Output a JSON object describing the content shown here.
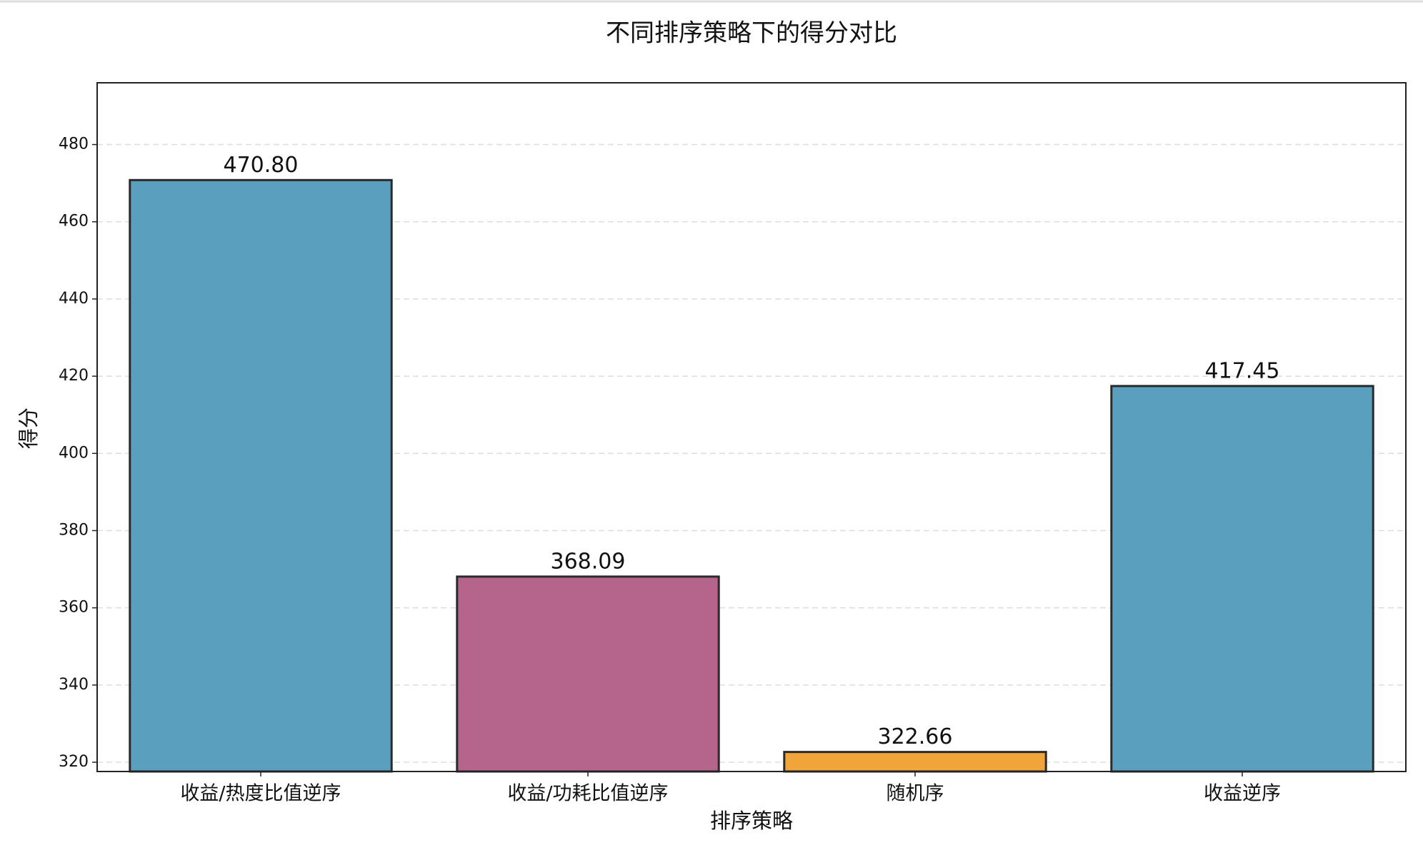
{
  "chart_data": {
    "type": "bar",
    "title": "不同排序策略下的得分对比",
    "x_label": "排序策略",
    "y_label": "得分",
    "categories": [
      "收益/热度比值逆序",
      "收益/功耗比值逆序",
      "随机序",
      "收益逆序"
    ],
    "values": [
      470.8,
      368.09,
      322.66,
      417.45
    ],
    "value_labels": [
      "470.80",
      "368.09",
      "322.66",
      "417.45"
    ],
    "colors": [
      "#5a9fbd",
      "#b5648c",
      "#f0a43a",
      "#5a9fbd"
    ],
    "ylim": [
      317.6,
      496
    ],
    "yticks": [
      320,
      340,
      360,
      380,
      400,
      420,
      440,
      460,
      480
    ],
    "grid": true
  }
}
